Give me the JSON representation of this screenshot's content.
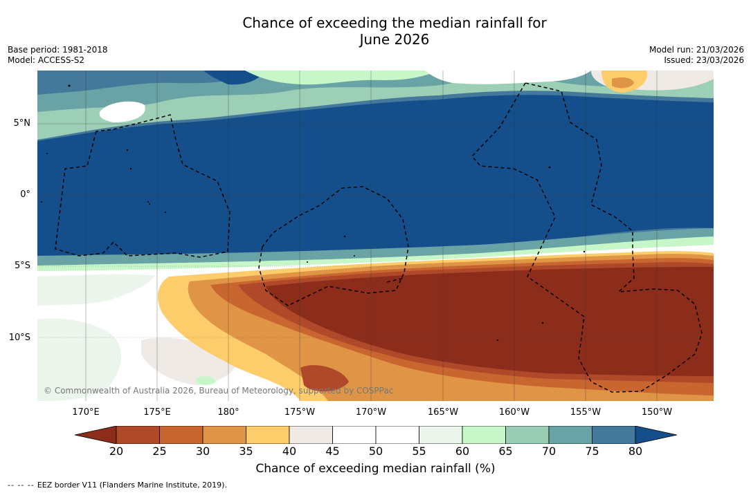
{
  "header": {
    "title_line1": "Chance of exceeding the median rainfall for",
    "title_line2": "June 2026",
    "base_period": "Base period: 1981-2018",
    "model": "Model: ACCESS-S2",
    "model_run": "Model run: 21/03/2026",
    "issued": "Issued: 23/03/2026"
  },
  "map": {
    "lat_labels": [
      "5°N",
      "0°",
      "5°S",
      "10°S"
    ],
    "lon_labels": [
      "170°E",
      "175°E",
      "180°",
      "175°W",
      "170°W",
      "165°W",
      "160°W",
      "155°W",
      "150°W"
    ],
    "credit": "© Commonwealth of Australia 2026, Bureau of Meteorology, supported by COSPPac"
  },
  "colorbar": {
    "ticks": [
      "20",
      "25",
      "30",
      "35",
      "40",
      "45",
      "50",
      "55",
      "60",
      "65",
      "70",
      "75",
      "80"
    ],
    "colors": [
      "#8c2d1b",
      "#b0492a",
      "#c9662f",
      "#df9446",
      "#fdcd6c",
      "#efeae6",
      "#ffffff",
      "#ffffff",
      "#ebf5eb",
      "#c7f6c8",
      "#99cdb5",
      "#6aa3a6",
      "#44799b",
      "#154f8b"
    ],
    "title": "Chance of exceeding median rainfall (%)"
  },
  "footer": {
    "legend_marker": "-- -- --",
    "eez_text": "EEZ border V11 (Flanders Marine Institute, 2019)."
  }
}
